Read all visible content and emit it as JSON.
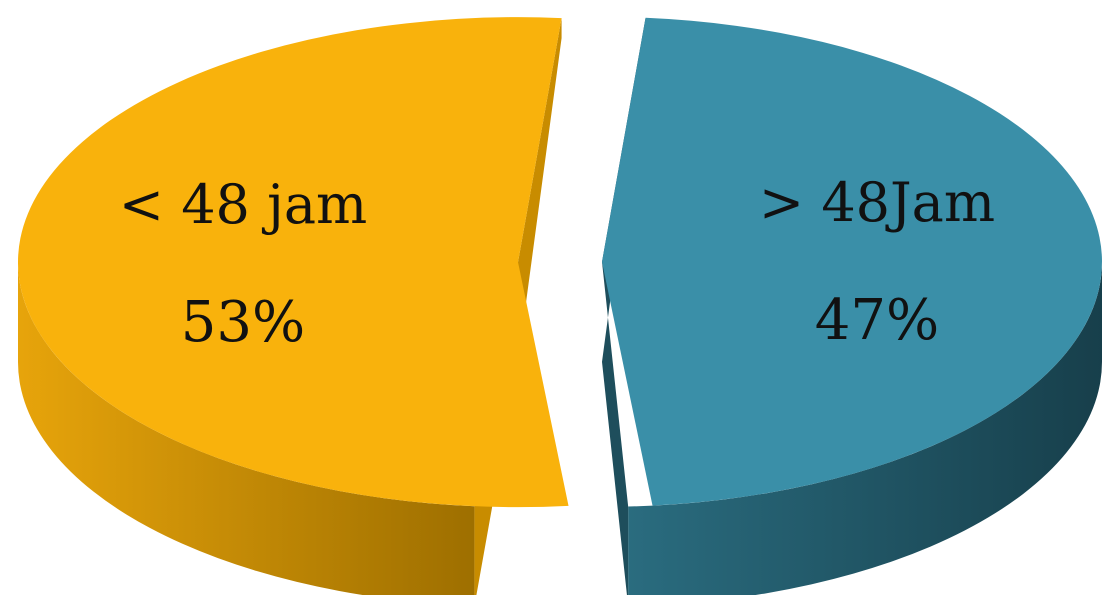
{
  "chart_data": {
    "type": "pie",
    "style": "3d-exploded",
    "legend": "none",
    "slices": [
      {
        "label": "< 48 jam",
        "value": 53,
        "value_label": "53%",
        "color": "#F9B20C",
        "side_color": "#C88C00"
      },
      {
        "label": "> 48Jam",
        "value": 47,
        "value_label": "47%",
        "color": "#3A8FA8",
        "side_color": "#1E4E5C"
      }
    ]
  }
}
